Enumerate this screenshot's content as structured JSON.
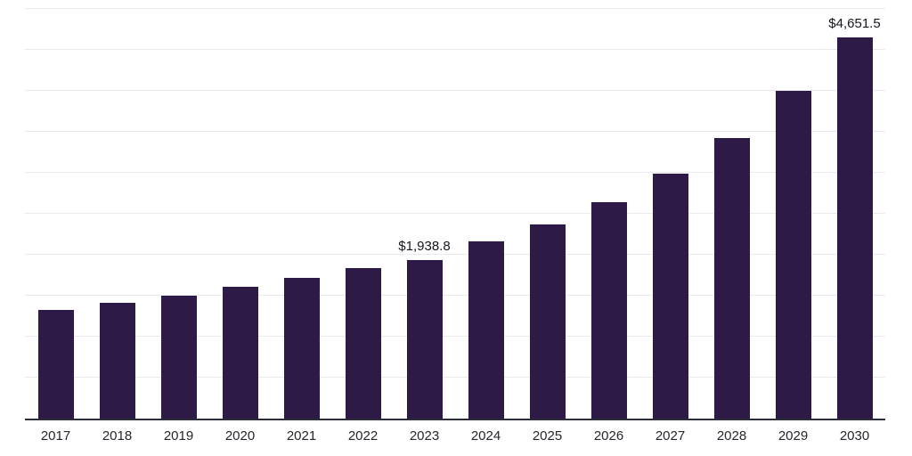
{
  "chart_data": {
    "type": "bar",
    "title": "",
    "xlabel": "",
    "ylabel": "",
    "ylim": [
      0,
      5000
    ],
    "gridline_step": 500,
    "grid": true,
    "legend": false,
    "bar_color": "#2e1a47",
    "axis_line_color": "#2d2d37",
    "gridline_color": "#e9e9ef",
    "categories": [
      "2017",
      "2018",
      "2019",
      "2020",
      "2021",
      "2022",
      "2023",
      "2024",
      "2025",
      "2026",
      "2027",
      "2028",
      "2029",
      "2030"
    ],
    "values": [
      1326,
      1413,
      1500,
      1609,
      1717,
      1837,
      1938.8,
      2163,
      2370,
      2641,
      2989,
      3424,
      4000,
      4651.5
    ],
    "data_labels": [
      "",
      "",
      "",
      "",
      "",
      "",
      "$1,938.8",
      "",
      "",
      "",
      "",
      "",
      "",
      "$4,651.5"
    ]
  }
}
